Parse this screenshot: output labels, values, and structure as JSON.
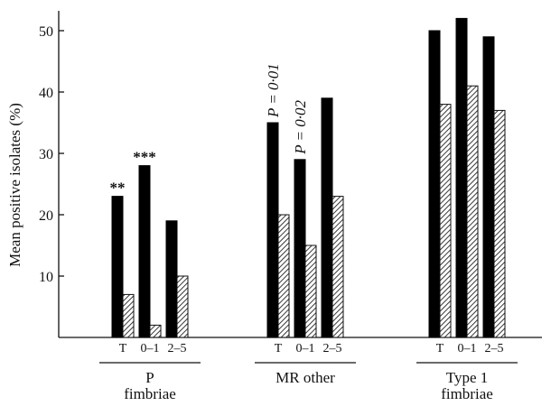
{
  "chart_data": {
    "type": "bar",
    "ylabel": "Mean positive isolates (%)",
    "ylim": [
      0,
      53
    ],
    "yticks": [
      10,
      20,
      30,
      40,
      50
    ],
    "grid": false,
    "legend": "none",
    "series_styles": [
      {
        "fill": "#000000",
        "pattern": "solid"
      },
      {
        "fill": "#ffffff",
        "pattern": "diagonal-hatch"
      }
    ],
    "groups": [
      {
        "label_lines": [
          "P",
          "fimbriae"
        ],
        "categories": [
          "T",
          "0–1",
          "2–5"
        ],
        "series": [
          {
            "values": [
              23,
              28,
              19
            ]
          },
          {
            "values": [
              7,
              2,
              10
            ]
          }
        ],
        "annotations": [
          {
            "category": "T",
            "text": "**",
            "rotated": false
          },
          {
            "category": "0–1",
            "text": "***",
            "rotated": false
          }
        ]
      },
      {
        "label_lines": [
          "MR other"
        ],
        "categories": [
          "T",
          "0–1",
          "2–5"
        ],
        "series": [
          {
            "values": [
              35,
              29,
              39
            ]
          },
          {
            "values": [
              20,
              15,
              23
            ]
          }
        ],
        "annotations": [
          {
            "category": "T",
            "text": "P = 0·01",
            "rotated": true
          },
          {
            "category": "0–1",
            "text": "P = 0·02",
            "rotated": true
          }
        ]
      },
      {
        "label_lines": [
          "Type 1",
          "fimbriae"
        ],
        "categories": [
          "T",
          "0–1",
          "2–5"
        ],
        "series": [
          {
            "values": [
              50,
              52,
              49
            ]
          },
          {
            "values": [
              38,
              41,
              37
            ]
          }
        ],
        "annotations": []
      }
    ]
  }
}
